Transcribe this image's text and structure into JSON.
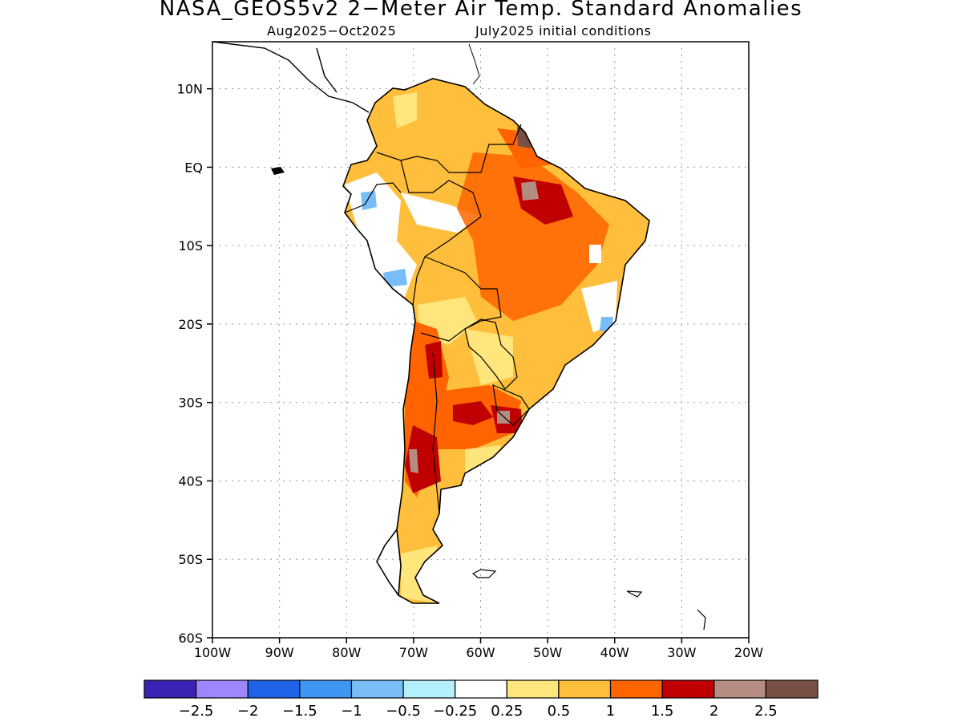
{
  "header": {
    "title": "NASA_GEOS5v2 2−Meter Air Temp. Standard Anomalies",
    "period": "Aug2025−Oct2025",
    "initial_conditions": "July2025 initial conditions"
  },
  "axes": {
    "lat_labels": [
      "10N",
      "EQ",
      "10S",
      "20S",
      "30S",
      "40S",
      "50S",
      "60S"
    ],
    "lon_labels": [
      "100W",
      "90W",
      "80W",
      "70W",
      "60W",
      "50W",
      "40W",
      "30W",
      "20W"
    ],
    "lat_range": [
      -60,
      16
    ],
    "lon_range": [
      -100,
      -20
    ],
    "grid": "dotted"
  },
  "colorbar": {
    "colors": [
      "#3a22b4",
      "#9e86ff",
      "#1f64e8",
      "#3c96f2",
      "#78bcf8",
      "#b4f0fc",
      "#ffffff",
      "#ffe67c",
      "#ffbe3c",
      "#ff6400",
      "#c00000",
      "#b48c82",
      "#785046"
    ],
    "labels": [
      "−2.5",
      "−2",
      "−1.5",
      "−1",
      "−0.5",
      "−0.25",
      "0.25",
      "0.5",
      "1",
      "1.5",
      "2",
      "2.5"
    ]
  }
}
